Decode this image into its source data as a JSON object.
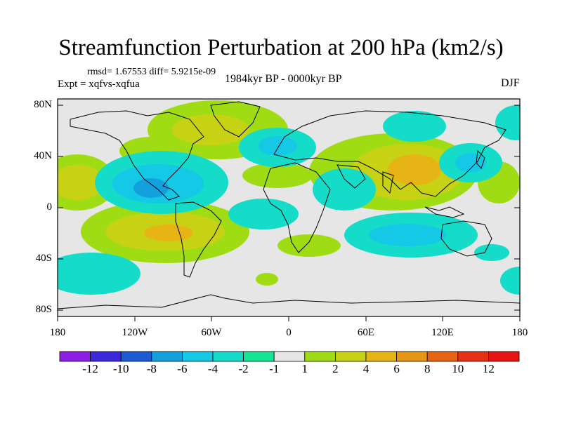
{
  "title": "Streamfunction Perturbation at 200 hPa (km2/s)",
  "stats": "rmsd= 1.67553  diff= 5.9215e-09",
  "experiment": "Expt = xqfvs-xqfua",
  "period": "1984kyr BP - 0000kyr BP",
  "season": "DJF",
  "lat_labels": [
    "80N",
    "40N",
    "0",
    "40S",
    "80S"
  ],
  "lon_labels": [
    "180",
    "120W",
    "60W",
    "0",
    "60E",
    "120E",
    "180"
  ],
  "colorbar": {
    "labels": [
      "-12",
      "-10",
      "-8",
      "-6",
      "-4",
      "-2",
      "-1",
      "1",
      "2",
      "4",
      "6",
      "8",
      "10",
      "12"
    ],
    "colors": [
      "#8c1ee6",
      "#3c28dc",
      "#1e5ad2",
      "#14a0dc",
      "#14c8e6",
      "#14dcc8",
      "#14e696",
      "#e6e6e6",
      "#a0dc14",
      "#c8d214",
      "#e6b414",
      "#e69614",
      "#e66414",
      "#e63214",
      "#e61414"
    ]
  },
  "icons": {
    "map": "world-map-icon"
  }
}
